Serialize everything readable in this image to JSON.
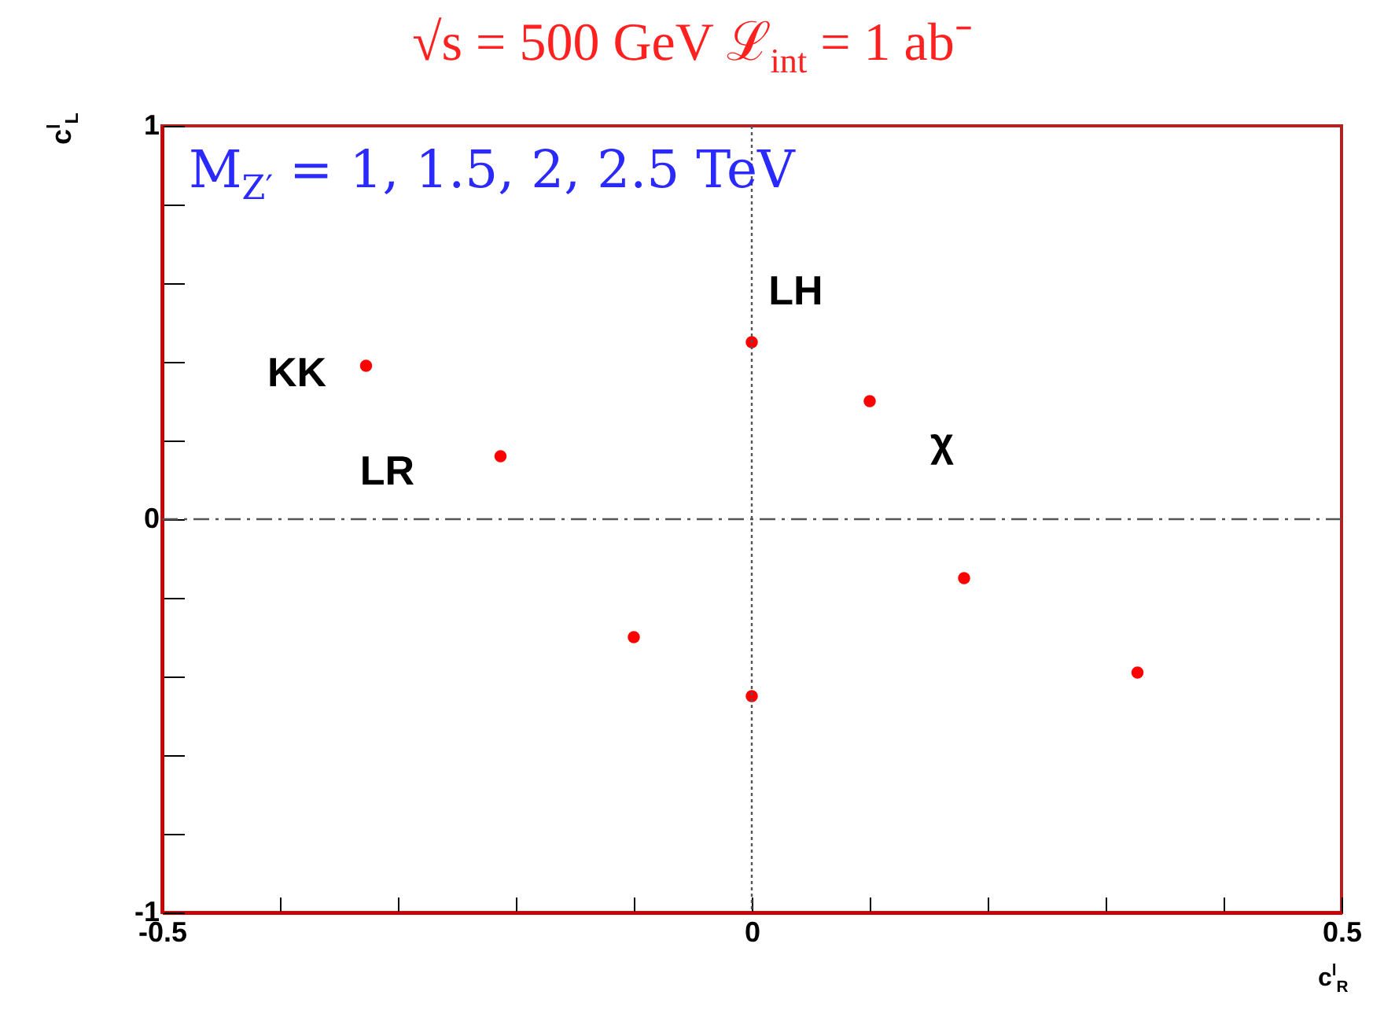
{
  "chart_data": {
    "type": "scatter",
    "title": "√s = 500 GeV ℒ$_{int}$ = 1 ab⁻",
    "subtitle": "M$_{Z′}$ = 1, 1.5, 2, 2.5 TeV",
    "xlabel": "c$^{l}$$_{R}$",
    "ylabel": "c$^{l}$$_{L}$",
    "xlim": [
      -0.5,
      0.5
    ],
    "ylim": [
      -1,
      1
    ],
    "xticks": [
      -0.5,
      {
        "value": -0.4,
        "label": null
      },
      {
        "value": -0.3,
        "label": null
      },
      {
        "value": -0.2,
        "label": null
      },
      {
        "value": -0.1,
        "label": null
      },
      0,
      {
        "value": 0.1,
        "label": null
      },
      {
        "value": 0.2,
        "label": null
      },
      {
        "value": 0.3,
        "label": null
      },
      {
        "value": 0.4,
        "label": null
      },
      0.5
    ],
    "yticks": [
      -1,
      {
        "value": -0.8,
        "label": null
      },
      {
        "value": -0.6,
        "label": null
      },
      {
        "value": -0.4,
        "label": null
      },
      {
        "value": -0.2,
        "label": null
      },
      0,
      {
        "value": 0.2,
        "label": null
      },
      {
        "value": 0.4,
        "label": null
      },
      {
        "value": 0.6,
        "label": null
      },
      {
        "value": 0.8,
        "label": null
      },
      1
    ],
    "x": [
      0,
      0.1,
      -0.327,
      -0.213,
      0.18,
      -0.1,
      0,
      0.327
    ],
    "series": [
      {
        "color": "#ff0000",
        "values": [
          0.45,
          0.3,
          0.39,
          0.16,
          -0.15,
          -0.3,
          -0.45,
          -0.39
        ]
      }
    ],
    "marker": "circle",
    "grid": false,
    "ref_lines": [
      {
        "axis": "y",
        "value": 0,
        "line_style": "dashed",
        "color": "#555555"
      },
      {
        "axis": "x",
        "value": 0,
        "line_style": "dotted",
        "color": "#555555"
      }
    ],
    "annotations": [
      {
        "text": "LH",
        "x": 0,
        "y": 0.45
      },
      {
        "text": "KK",
        "x": -0.327,
        "y": 0.39
      },
      {
        "text": "LR",
        "x": -0.213,
        "y": 0.16
      },
      {
        "text": "χ",
        "x": 0.1,
        "y": 0.3
      }
    ]
  }
}
